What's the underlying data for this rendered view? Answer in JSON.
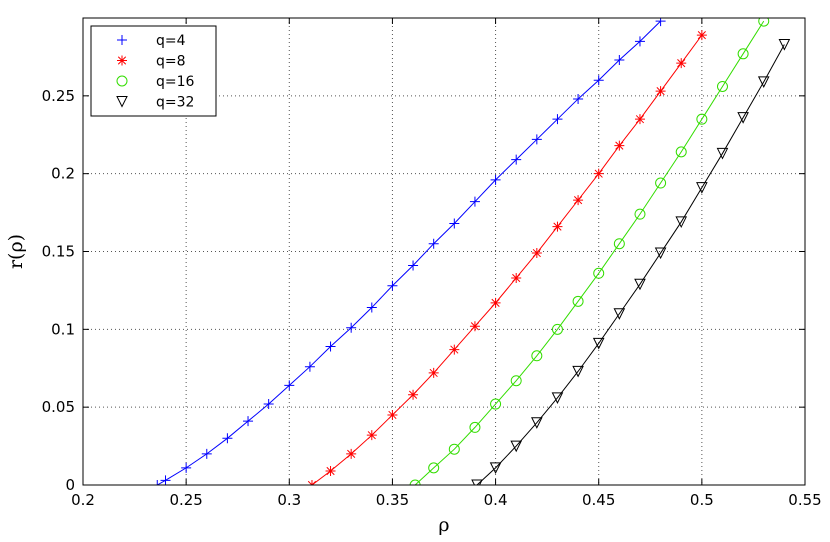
{
  "chart_data": {
    "type": "line",
    "xlabel": "ρ",
    "ylabel": "r(ρ)",
    "xlim": [
      0.2,
      0.55
    ],
    "ylim": [
      0,
      0.3
    ],
    "xticks": [
      "0.2",
      "0.25",
      "0.3",
      "0.35",
      "0.4",
      "0.45",
      "0.5",
      "0.55"
    ],
    "yticks": [
      "0",
      "0.05",
      "0.1",
      "0.15",
      "0.2",
      "0.25"
    ],
    "grid": true,
    "legend_position": "top-left",
    "series": [
      {
        "name": "q=4",
        "color": "#0000ff",
        "marker": "plus",
        "x": [
          0.236,
          0.24,
          0.25,
          0.26,
          0.27,
          0.28,
          0.29,
          0.3,
          0.31,
          0.32,
          0.33,
          0.34,
          0.35,
          0.36,
          0.37,
          0.38,
          0.39,
          0.4,
          0.41,
          0.42,
          0.43,
          0.44,
          0.45,
          0.46,
          0.47,
          0.48
        ],
        "y": [
          0.0,
          0.003,
          0.011,
          0.02,
          0.03,
          0.041,
          0.052,
          0.064,
          0.076,
          0.089,
          0.101,
          0.114,
          0.128,
          0.141,
          0.155,
          0.168,
          0.182,
          0.196,
          0.209,
          0.222,
          0.235,
          0.248,
          0.26,
          0.273,
          0.285,
          0.298
        ]
      },
      {
        "name": "q=8",
        "color": "#ff0000",
        "marker": "asterisk",
        "x": [
          0.311,
          0.32,
          0.33,
          0.34,
          0.35,
          0.36,
          0.37,
          0.38,
          0.39,
          0.4,
          0.41,
          0.42,
          0.43,
          0.44,
          0.45,
          0.46,
          0.47,
          0.48,
          0.49,
          0.5
        ],
        "y": [
          0.0,
          0.009,
          0.02,
          0.032,
          0.045,
          0.058,
          0.072,
          0.087,
          0.102,
          0.117,
          0.133,
          0.149,
          0.166,
          0.183,
          0.2,
          0.218,
          0.235,
          0.253,
          0.271,
          0.289
        ]
      },
      {
        "name": "q=16",
        "color": "#33dd00",
        "marker": "circle",
        "x": [
          0.361,
          0.37,
          0.38,
          0.39,
          0.4,
          0.41,
          0.42,
          0.43,
          0.44,
          0.45,
          0.46,
          0.47,
          0.48,
          0.49,
          0.5,
          0.51,
          0.52,
          0.53
        ],
        "y": [
          0.0,
          0.011,
          0.023,
          0.037,
          0.052,
          0.067,
          0.083,
          0.1,
          0.118,
          0.136,
          0.155,
          0.174,
          0.194,
          0.214,
          0.235,
          0.256,
          0.277,
          0.298
        ]
      },
      {
        "name": "q=32",
        "color": "#000000",
        "marker": "triangle-down",
        "x": [
          0.391,
          0.4,
          0.41,
          0.42,
          0.43,
          0.44,
          0.45,
          0.46,
          0.47,
          0.48,
          0.49,
          0.5,
          0.51,
          0.52,
          0.53,
          0.54
        ],
        "y": [
          0.0,
          0.011,
          0.025,
          0.04,
          0.056,
          0.073,
          0.091,
          0.11,
          0.129,
          0.149,
          0.169,
          0.191,
          0.213,
          0.236,
          0.259,
          0.283
        ]
      }
    ]
  }
}
